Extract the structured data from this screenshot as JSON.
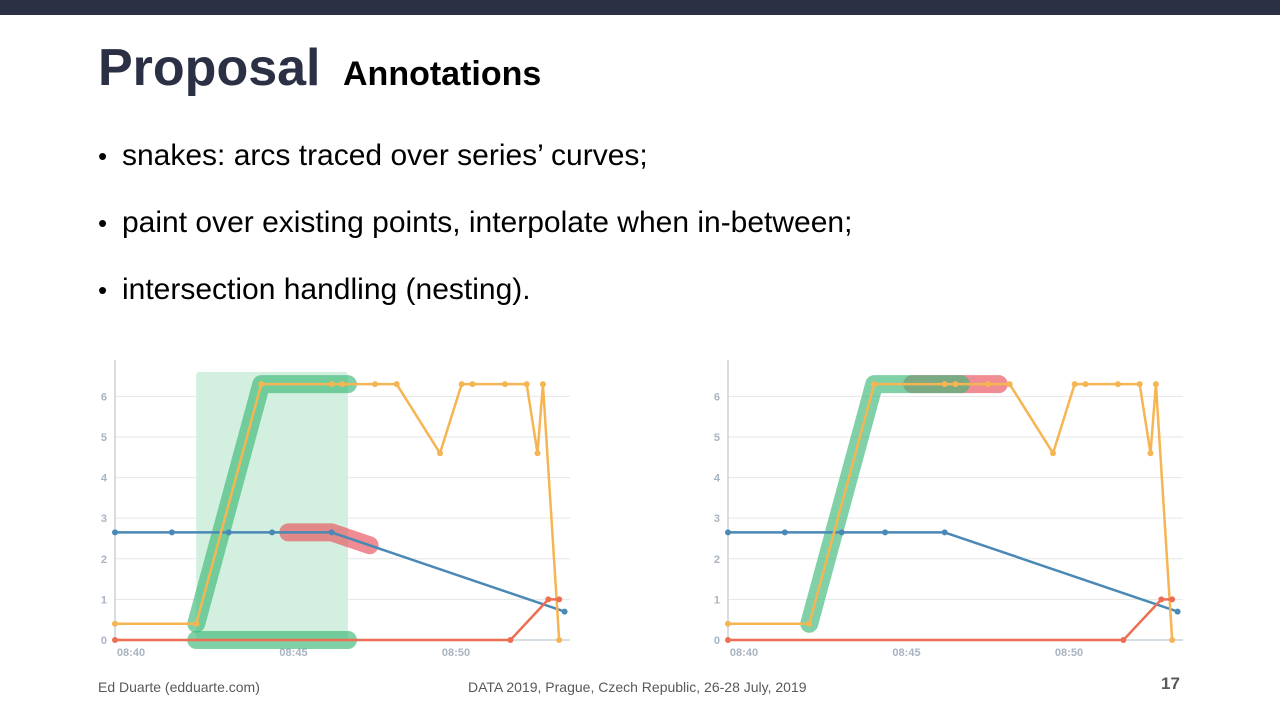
{
  "slide": {
    "title": "Proposal",
    "subtitle": "Annotations",
    "bullets": [
      "snakes: arcs traced over series’ curves;",
      "paint over existing points, interpolate when in-between;",
      "intersection handling (nesting)."
    ],
    "footer_left": "Ed Duarte (edduarte.com)",
    "footer_center": "DATA 2019, Prague, Czech Republic, 26-28 July, 2019",
    "page_number": "17"
  },
  "colors": {
    "top_bar": "#2b3044",
    "title": "#2b3044",
    "series_blue": "#4a88b5",
    "series_orange": "#f6b553",
    "series_red": "#ee6e52",
    "snake_green": "#3cb878",
    "snake_red": "#e8505b",
    "band_green": "#d3efe0"
  },
  "chart_data": [
    {
      "type": "line",
      "ylim": [
        0,
        6.6
      ],
      "yticks": [
        "0",
        "1",
        "2",
        "3",
        "4",
        "5",
        "6"
      ],
      "xtick_labels": [
        "08:40",
        "08:45",
        "08:50"
      ],
      "series": [
        {
          "color": "#4a88b5",
          "x": [
            "08:40",
            "08:41:45",
            "08:43:30",
            "08:44:50",
            "08:46:40",
            "08:53:50"
          ],
          "values": [
            2.65,
            2.65,
            2.65,
            2.65,
            2.65,
            0.7
          ]
        },
        {
          "color": "#f6b553",
          "x": [
            "08:40",
            "08:42:30",
            "08:44:30",
            "08:46:40",
            "08:47",
            "08:48",
            "08:48:40",
            "08:50",
            "08:50:40",
            "08:51",
            "08:52",
            "08:52:40",
            "08:53",
            "08:53:10",
            "08:53:40"
          ],
          "values": [
            0.4,
            0.4,
            6.3,
            6.3,
            6.3,
            6.3,
            6.3,
            4.6,
            6.3,
            6.3,
            6.3,
            6.3,
            4.6,
            6.3,
            0.0
          ]
        },
        {
          "color": "#ee6e52",
          "x": [
            "08:40",
            "08:52:10",
            "08:53:20",
            "08:53:40"
          ],
          "values": [
            0,
            0,
            1.0,
            1.0
          ]
        }
      ],
      "annotations": [
        {
          "type": "band",
          "x_from": "08:42:30",
          "x_to": "08:47:10"
        },
        {
          "type": "snake",
          "color": "#3cb878",
          "series": "orange",
          "x_from": "08:42:30",
          "x_to": "08:47:10"
        },
        {
          "type": "snake",
          "color": "#3cb878",
          "series": "red",
          "x_from": "08:42:30",
          "x_to": "08:47:10"
        },
        {
          "type": "snake",
          "color": "#e8505b",
          "series": "blue",
          "x_from": "08:45:20",
          "x_to": "08:47:50"
        }
      ]
    },
    {
      "type": "line",
      "ylim": [
        0,
        6.6
      ],
      "yticks": [
        "0",
        "1",
        "2",
        "3",
        "4",
        "5",
        "6"
      ],
      "xtick_labels": [
        "08:40",
        "08:45",
        "08:50"
      ],
      "series": [
        {
          "color": "#4a88b5",
          "x": [
            "08:40",
            "08:41:45",
            "08:43:30",
            "08:44:50",
            "08:46:40",
            "08:53:50"
          ],
          "values": [
            2.65,
            2.65,
            2.65,
            2.65,
            2.65,
            0.7
          ]
        },
        {
          "color": "#f6b553",
          "x": [
            "08:40",
            "08:42:30",
            "08:44:30",
            "08:46:40",
            "08:47",
            "08:48",
            "08:48:40",
            "08:50",
            "08:50:40",
            "08:51",
            "08:52",
            "08:52:40",
            "08:53",
            "08:53:10",
            "08:53:40"
          ],
          "values": [
            0.4,
            0.4,
            6.3,
            6.3,
            6.3,
            6.3,
            6.3,
            4.6,
            6.3,
            6.3,
            6.3,
            6.3,
            4.6,
            6.3,
            0.0
          ]
        },
        {
          "color": "#ee6e52",
          "x": [
            "08:40",
            "08:52:10",
            "08:53:20",
            "08:53:40"
          ],
          "values": [
            0,
            0,
            1.0,
            1.0
          ]
        }
      ],
      "annotations": [
        {
          "type": "snake",
          "color": "#e8505b",
          "series": "orange",
          "x_from": "08:45:40",
          "x_to": "08:48:20"
        },
        {
          "type": "snake",
          "color": "#3cb878",
          "series": "orange",
          "x_from": "08:42:30",
          "x_to": "08:47:10"
        }
      ]
    }
  ]
}
